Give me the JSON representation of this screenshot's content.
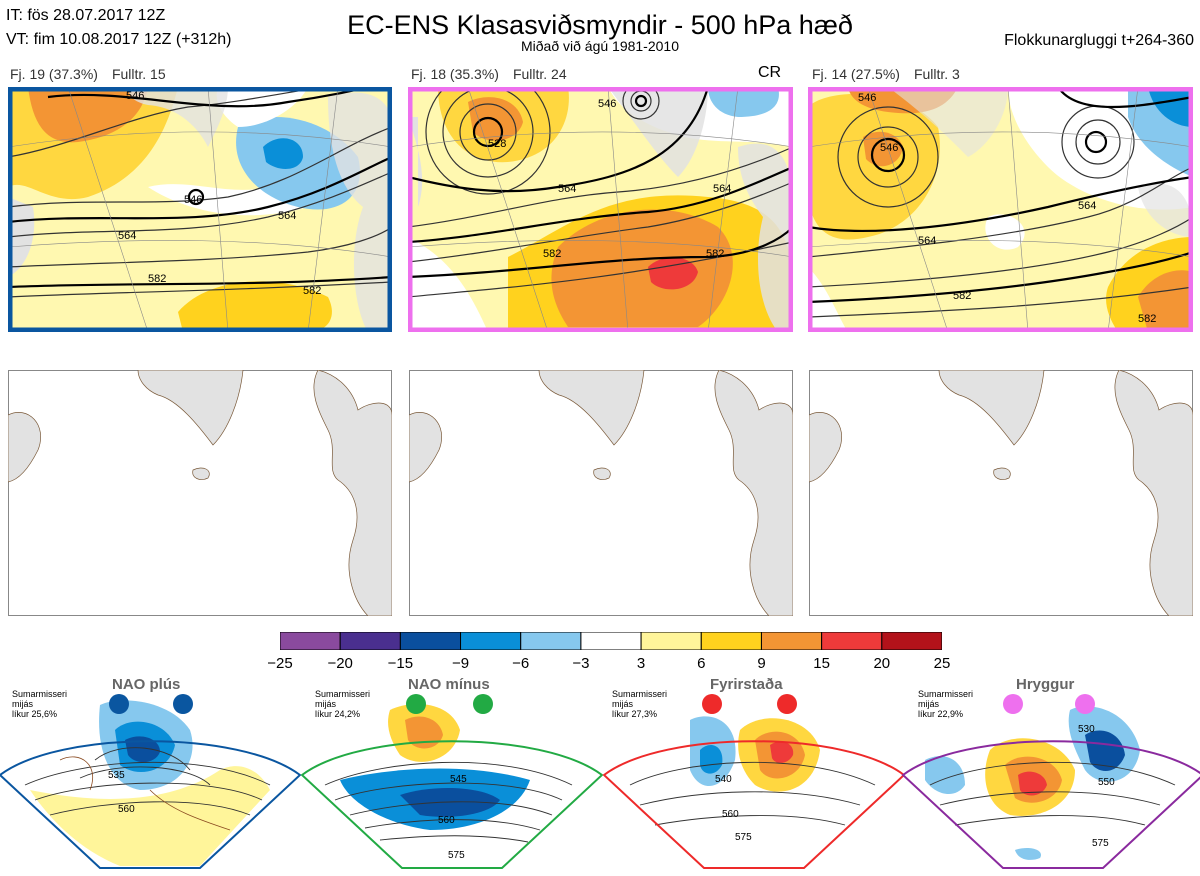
{
  "header": {
    "it_line": "IT: fös 28.07.2017 12Z",
    "vt_line": "VT: fim 10.08.2017 12Z  (+312h)",
    "title": "EC-ENS Klasasviðsmyndir - 500 hPa hæð",
    "subtitle": "Miðað við ágú 1981-2010",
    "window": "Flokkunargluggi t+264-360"
  },
  "panels": [
    {
      "count": "Fj. 19 (37.3%)",
      "rep": "Fulltr. 15",
      "border": "#0a56a0",
      "tag": "",
      "contours": [
        "546",
        "546",
        "564",
        "564",
        "582",
        "582"
      ]
    },
    {
      "count": "Fj. 18 (35.3%)",
      "rep": "Fulltr. 24",
      "border": "#ee70ee",
      "tag": "CR",
      "contours": [
        "546",
        "528",
        "564",
        "564",
        "582",
        "582"
      ]
    },
    {
      "count": "Fj. 14 (27.5%)",
      "rep": "Fulltr. 3",
      "border": "#ee70ee",
      "tag": "",
      "contours": [
        "546",
        "546",
        "564",
        "564",
        "582",
        "582"
      ]
    }
  ],
  "colorbar": {
    "ticks": [
      "−25",
      "−20",
      "−15",
      "−9",
      "−6",
      "−3",
      "3",
      "6",
      "9",
      "15",
      "20",
      "25"
    ],
    "colors": [
      "#8a4a9e",
      "#4a2f8f",
      "#0a4f9e",
      "#0a8fd8",
      "#86c8ee",
      "#ffffff",
      "#fff59a",
      "#ffd21e",
      "#f39534",
      "#ee3a3a",
      "#b3121a"
    ]
  },
  "regimes": [
    {
      "name": "NAO plús",
      "line1": "Sumarmisseri",
      "line2": "mijás",
      "line3": "líkur 25,6%",
      "color": "#0a56a0",
      "labels": [
        "535",
        "560"
      ]
    },
    {
      "name": "NAO mínus",
      "line1": "Sumarmisseri",
      "line2": "mijás",
      "line3": "líkur 24,2%",
      "color": "#22aa44",
      "labels": [
        "545",
        "560",
        "575"
      ]
    },
    {
      "name": "Fyrirstaða",
      "line1": "Sumarmisseri",
      "line2": "mijás",
      "line3": "líkur 27,3%",
      "color": "#ee2a2a",
      "labels": [
        "540",
        "560",
        "575"
      ]
    },
    {
      "name": "Hryggur",
      "line1": "Sumarmisseri",
      "line2": "mijás",
      "line3": "líkur 22,9%",
      "color": "#ee70ee",
      "labels": [
        "530",
        "550",
        "575"
      ]
    }
  ]
}
